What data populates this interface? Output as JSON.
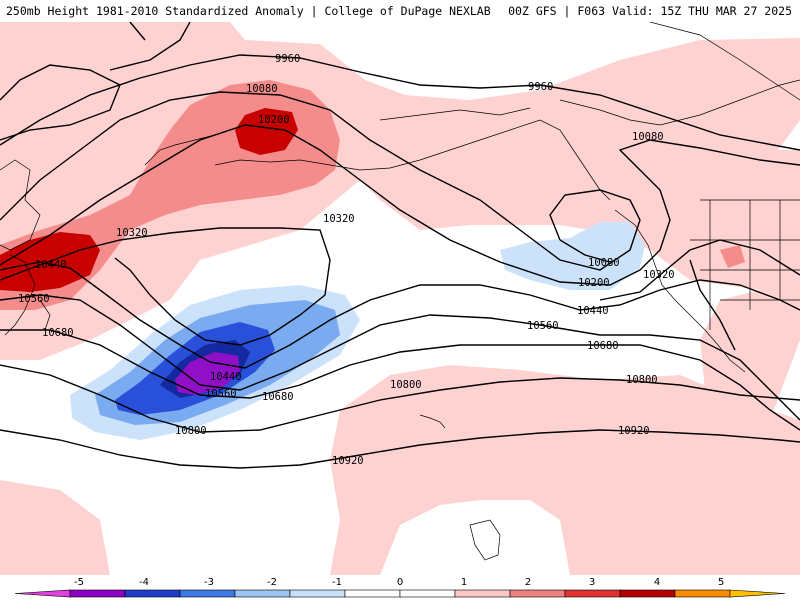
{
  "header": {
    "left_title": "250mb Height 1981-2010 Standardized Anomaly | College of DuPage NEXLAB",
    "right_title": "00Z GFS | F063 Valid: 15Z THU MAR 27 2025"
  },
  "contour_labels": [
    {
      "id": "label-9960-west",
      "text": "9960"
    },
    {
      "id": "label-9960-east",
      "text": "9960"
    },
    {
      "id": "label-10080-west",
      "text": "10080"
    },
    {
      "id": "label-10080-east",
      "text": "10080"
    },
    {
      "id": "label-10080-low",
      "text": "10080"
    },
    {
      "id": "label-10200-west",
      "text": "10200"
    },
    {
      "id": "label-10200-east",
      "text": "10200"
    },
    {
      "id": "label-10320-west",
      "text": "10320"
    },
    {
      "id": "label-10320-mid",
      "text": "10320"
    },
    {
      "id": "label-10320-east",
      "text": "10320"
    },
    {
      "id": "label-10440-west",
      "text": "10440"
    },
    {
      "id": "label-10440-mid",
      "text": "10440"
    },
    {
      "id": "label-10440-east",
      "text": "10440"
    },
    {
      "id": "label-10560-west",
      "text": "10560"
    },
    {
      "id": "label-10560-mid",
      "text": "10560"
    },
    {
      "id": "label-10560-east",
      "text": "10560"
    },
    {
      "id": "label-10680-west",
      "text": "10680"
    },
    {
      "id": "label-10680-mid",
      "text": "10680"
    },
    {
      "id": "label-10680-east",
      "text": "10680"
    },
    {
      "id": "label-10800-mid",
      "text": "10800"
    },
    {
      "id": "label-10800-center",
      "text": "10800"
    },
    {
      "id": "label-10800-east",
      "text": "10800"
    },
    {
      "id": "label-10920-center",
      "text": "10920"
    },
    {
      "id": "label-10920-east",
      "text": "10920"
    }
  ],
  "colorbar": {
    "ticks": [
      "-5",
      "-4",
      "-3",
      "-2",
      "-1",
      "0",
      "1",
      "2",
      "3",
      "4",
      "5"
    ],
    "colors": [
      "#e040e0",
      "#8c00c8",
      "#1e3cc8",
      "#3c78e6",
      "#9cc4f2",
      "#c8e0f8",
      "#ffffff",
      "#ffffff",
      "#ffc8c8",
      "#f08080",
      "#e03232",
      "#b40000",
      "#ff8c00",
      "#ffc000"
    ]
  },
  "legend_colors": {
    "pos1": "#ffd2d2",
    "pos2": "#f58c8c",
    "pos3": "#e03c3c",
    "pos4": "#c80000",
    "neg1": "#cce2fa",
    "neg2": "#7aaaf0",
    "neg3": "#2850d8",
    "neg4": "#1428a0",
    "neg5": "#9010c8"
  }
}
